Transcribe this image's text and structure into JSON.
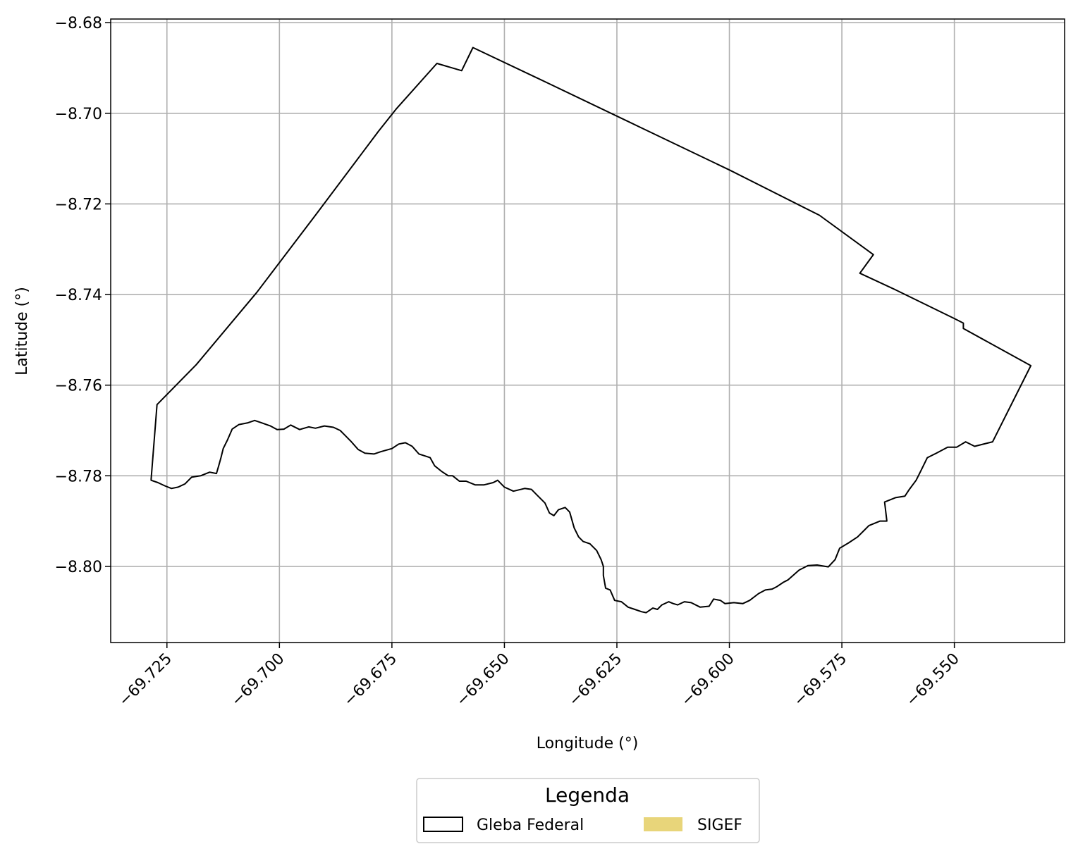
{
  "chart_data": {
    "type": "map",
    "xlabel": "Longitude (°)",
    "ylabel": "Latitude (°)",
    "xlim": [
      -69.7375,
      -69.5255
    ],
    "ylim": [
      -8.8168,
      -8.6792
    ],
    "xticks": [
      -69.725,
      -69.7,
      -69.675,
      -69.65,
      -69.625,
      -69.6,
      -69.575,
      -69.55
    ],
    "xtick_labels": [
      "−69.725",
      "−69.700",
      "−69.675",
      "−69.650",
      "−69.625",
      "−69.600",
      "−69.575",
      "−69.550"
    ],
    "yticks": [
      -8.68,
      -8.7,
      -8.72,
      -8.74,
      -8.76,
      -8.78,
      -8.8
    ],
    "ytick_labels": [
      "−8.68",
      "−8.70",
      "−8.72",
      "−8.74",
      "−8.76",
      "−8.78",
      "−8.80"
    ],
    "grid": true,
    "legend": {
      "title": "Legenda",
      "placement": "bottom-center",
      "entries": [
        {
          "label": "Gleba Federal",
          "style": "outline",
          "edge_color": "#000000",
          "fill_color": "#ffffff"
        },
        {
          "label": "SIGEF",
          "style": "filled",
          "fill_color": "#e8d57a"
        }
      ]
    },
    "layers": [
      {
        "name": "Gleba Federal",
        "geometry": "polygon",
        "edge_color": "#000000",
        "coordinates": [
          [
            -69.7285,
            -8.7807
          ],
          [
            -69.7272,
            -8.7643
          ],
          [
            -69.7185,
            -8.7555
          ],
          [
            -69.705,
            -8.7395
          ],
          [
            -69.692,
            -8.7225
          ],
          [
            -69.678,
            -8.704
          ],
          [
            -69.674,
            -8.699
          ],
          [
            -69.665,
            -8.689
          ],
          [
            -69.6595,
            -8.6906
          ],
          [
            -69.657,
            -8.6855
          ],
          [
            -69.64,
            -8.6935
          ],
          [
            -69.62,
            -8.703
          ],
          [
            -69.6,
            -8.7125
          ],
          [
            -69.58,
            -8.7225
          ],
          [
            -69.568,
            -8.7312
          ],
          [
            -69.571,
            -8.7353
          ],
          [
            -69.563,
            -8.739
          ],
          [
            -69.55,
            -8.7453
          ],
          [
            -69.548,
            -8.7463
          ],
          [
            -69.548,
            -8.7475
          ],
          [
            -69.533,
            -8.7557
          ],
          [
            -69.5415,
            -8.7725
          ],
          [
            -69.5455,
            -8.7735
          ],
          [
            -69.5475,
            -8.7725
          ],
          [
            -69.5495,
            -8.7737
          ],
          [
            -69.5515,
            -8.7737
          ],
          [
            -69.554,
            -8.775
          ],
          [
            -69.556,
            -8.776
          ],
          [
            -69.5575,
            -8.779
          ],
          [
            -69.5585,
            -8.781
          ],
          [
            -69.56,
            -8.783
          ],
          [
            -69.561,
            -8.7845
          ],
          [
            -69.563,
            -8.7848
          ],
          [
            -69.5655,
            -8.7858
          ],
          [
            -69.565,
            -8.79
          ],
          [
            -69.5665,
            -8.79
          ],
          [
            -69.569,
            -8.791
          ],
          [
            -69.57,
            -8.792
          ],
          [
            -69.5715,
            -8.7935
          ],
          [
            -69.5735,
            -8.7948
          ],
          [
            -69.5755,
            -8.796
          ],
          [
            -69.5765,
            -8.7985
          ],
          [
            -69.578,
            -8.8001
          ],
          [
            -69.5805,
            -8.7997
          ],
          [
            -69.5825,
            -8.7998
          ],
          [
            -69.5845,
            -8.8008
          ],
          [
            -69.587,
            -8.803
          ],
          [
            -69.588,
            -8.8035
          ],
          [
            -69.5895,
            -8.8045
          ],
          [
            -69.5905,
            -8.805
          ],
          [
            -69.592,
            -8.8052
          ],
          [
            -69.5935,
            -8.806
          ],
          [
            -69.5955,
            -8.8075
          ],
          [
            -69.597,
            -8.8082
          ],
          [
            -69.599,
            -8.808
          ],
          [
            -69.601,
            -8.8082
          ],
          [
            -69.602,
            -8.8075
          ],
          [
            -69.6035,
            -8.8072
          ],
          [
            -69.6045,
            -8.8088
          ],
          [
            -69.6065,
            -8.809
          ],
          [
            -69.6085,
            -8.808
          ],
          [
            -69.61,
            -8.8078
          ],
          [
            -69.6115,
            -8.8085
          ],
          [
            -69.6125,
            -8.8082
          ],
          [
            -69.6135,
            -8.8078
          ],
          [
            -69.615,
            -8.8085
          ],
          [
            -69.616,
            -8.8095
          ],
          [
            -69.617,
            -8.8092
          ],
          [
            -69.6185,
            -8.8102
          ],
          [
            -69.6195,
            -8.81
          ],
          [
            -69.621,
            -8.8095
          ],
          [
            -69.6225,
            -8.809
          ],
          [
            -69.624,
            -8.8078
          ],
          [
            -69.6255,
            -8.8075
          ],
          [
            -69.6265,
            -8.8052
          ],
          [
            -69.6275,
            -8.8048
          ],
          [
            -69.628,
            -8.802
          ],
          [
            -69.628,
            -8.8
          ],
          [
            -69.6285,
            -8.7985
          ],
          [
            -69.6295,
            -8.7965
          ],
          [
            -69.631,
            -8.795
          ],
          [
            -69.6325,
            -8.7945
          ],
          [
            -69.6335,
            -8.7935
          ],
          [
            -69.6345,
            -8.7915
          ],
          [
            -69.6355,
            -8.788
          ],
          [
            -69.6365,
            -8.787
          ],
          [
            -69.638,
            -8.7875
          ],
          [
            -69.639,
            -8.7888
          ],
          [
            -69.64,
            -8.7882
          ],
          [
            -69.641,
            -8.786
          ],
          [
            -69.6415,
            -8.7855
          ],
          [
            -69.6425,
            -8.7845
          ],
          [
            -69.644,
            -8.783
          ],
          [
            -69.6455,
            -8.7828
          ],
          [
            -69.648,
            -8.7834
          ],
          [
            -69.65,
            -8.7825
          ],
          [
            -69.6515,
            -8.781
          ],
          [
            -69.6525,
            -8.7815
          ],
          [
            -69.6545,
            -8.782
          ],
          [
            -69.6565,
            -8.782
          ],
          [
            -69.6585,
            -8.7812
          ],
          [
            -69.66,
            -8.7812
          ],
          [
            -69.6615,
            -8.78
          ],
          [
            -69.6625,
            -8.78
          ],
          [
            -69.664,
            -8.779
          ],
          [
            -69.6655,
            -8.7778
          ],
          [
            -69.6665,
            -8.776
          ],
          [
            -69.668,
            -8.7755
          ],
          [
            -69.669,
            -8.7752
          ],
          [
            -69.6705,
            -8.7735
          ],
          [
            -69.672,
            -8.7727
          ],
          [
            -69.6735,
            -8.773
          ],
          [
            -69.675,
            -8.774
          ],
          [
            -69.6775,
            -8.7747
          ],
          [
            -69.679,
            -8.7752
          ],
          [
            -69.681,
            -8.775
          ],
          [
            -69.6825,
            -8.7742
          ],
          [
            -69.684,
            -8.7725
          ],
          [
            -69.6855,
            -8.771
          ],
          [
            -69.6865,
            -8.77
          ],
          [
            -69.688,
            -8.7693
          ],
          [
            -69.69,
            -8.769
          ],
          [
            -69.692,
            -8.7695
          ],
          [
            -69.6935,
            -8.7692
          ],
          [
            -69.6955,
            -8.7698
          ],
          [
            -69.6975,
            -8.7688
          ],
          [
            -69.699,
            -8.7697
          ],
          [
            -69.7005,
            -8.7698
          ],
          [
            -69.702,
            -8.769
          ],
          [
            -69.704,
            -8.7683
          ],
          [
            -69.7055,
            -8.7678
          ],
          [
            -69.707,
            -8.7683
          ],
          [
            -69.709,
            -8.7687
          ],
          [
            -69.7105,
            -8.7697
          ],
          [
            -69.7115,
            -8.772
          ],
          [
            -69.7125,
            -8.774
          ],
          [
            -69.713,
            -8.776
          ],
          [
            -69.7135,
            -8.7778
          ],
          [
            -69.714,
            -8.7795
          ],
          [
            -69.7155,
            -8.7792
          ],
          [
            -69.7175,
            -8.78
          ],
          [
            -69.7195,
            -8.7803
          ],
          [
            -69.721,
            -8.7818
          ],
          [
            -69.7225,
            -8.7825
          ],
          [
            -69.724,
            -8.7828
          ],
          [
            -69.7255,
            -8.7822
          ],
          [
            -69.727,
            -8.7815
          ],
          [
            -69.7285,
            -8.781
          ]
        ]
      },
      {
        "name": "SIGEF",
        "geometry": "polygon",
        "fill_color": "#e8d57a",
        "coordinates": []
      }
    ]
  }
}
